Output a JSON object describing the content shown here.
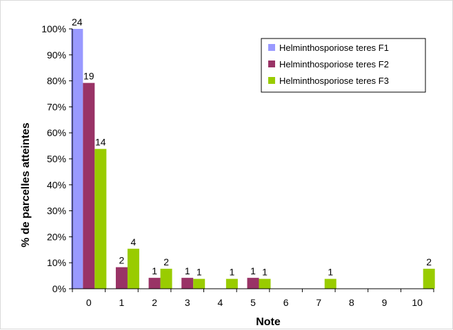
{
  "chart_data": {
    "type": "bar",
    "title": "",
    "xlabel": "Note",
    "ylabel": "% de parcelles atteintes",
    "categories": [
      "0",
      "1",
      "2",
      "3",
      "4",
      "5",
      "6",
      "7",
      "8",
      "9",
      "10"
    ],
    "ylim": [
      0,
      100
    ],
    "yticks": [
      "0%",
      "10%",
      "20%",
      "30%",
      "40%",
      "50%",
      "60%",
      "70%",
      "80%",
      "90%",
      "100%"
    ],
    "grid": false,
    "legend_position": "top-right",
    "series": [
      {
        "name": "Helminthosporiose teres F1",
        "color": "#9999ff",
        "values": [
          100,
          0,
          0,
          0,
          0,
          0,
          0,
          0,
          0,
          0,
          0
        ],
        "labels": [
          "24",
          "",
          "",
          "",
          "",
          "",
          "",
          "",
          "",
          "",
          ""
        ]
      },
      {
        "name": "Helminthosporiose teres F2",
        "color": "#993366",
        "values": [
          79.2,
          8.3,
          4.2,
          4.2,
          0,
          4.2,
          0,
          0,
          0,
          0,
          0
        ],
        "labels": [
          "19",
          "2",
          "1",
          "1",
          "",
          "1",
          "",
          "",
          "",
          "",
          ""
        ]
      },
      {
        "name": "Helminthosporiose teres F3",
        "color": "#99cc00",
        "values": [
          53.8,
          15.4,
          7.7,
          3.8,
          3.8,
          3.8,
          0,
          3.8,
          0,
          0,
          7.7
        ],
        "labels": [
          "14",
          "4",
          "2",
          "1",
          "1",
          "1",
          "",
          "1",
          "",
          "",
          "2"
        ]
      }
    ]
  }
}
